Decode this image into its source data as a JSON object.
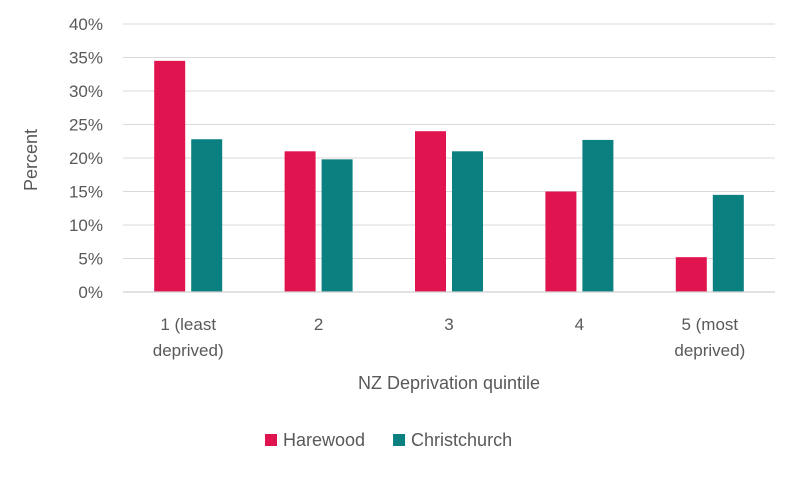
{
  "chart_data": {
    "type": "bar",
    "title": "",
    "xlabel": "NZ Deprivation quintile",
    "ylabel": "Percent",
    "ylim": [
      0,
      40
    ],
    "yticks": [
      0,
      5,
      10,
      15,
      20,
      25,
      30,
      35,
      40
    ],
    "ytick_labels": [
      "0%",
      "5%",
      "10%",
      "15%",
      "20%",
      "25%",
      "30%",
      "35%",
      "40%"
    ],
    "grid": "horizontal",
    "legend_position": "bottom",
    "categories": [
      "1 (least deprived)",
      "2",
      "3",
      "4",
      "5 (most deprived)"
    ],
    "category_lines": [
      [
        "1 (least",
        "deprived)"
      ],
      [
        "2"
      ],
      [
        "3"
      ],
      [
        "4"
      ],
      [
        "5 (most",
        "deprived)"
      ]
    ],
    "series": [
      {
        "name": "Harewood",
        "color": "#e0144f",
        "values": [
          34.5,
          21.0,
          24.0,
          15.0,
          5.2
        ]
      },
      {
        "name": "Christchurch",
        "color": "#0b8080",
        "values": [
          22.8,
          19.8,
          21.0,
          22.7,
          14.5
        ]
      }
    ]
  }
}
